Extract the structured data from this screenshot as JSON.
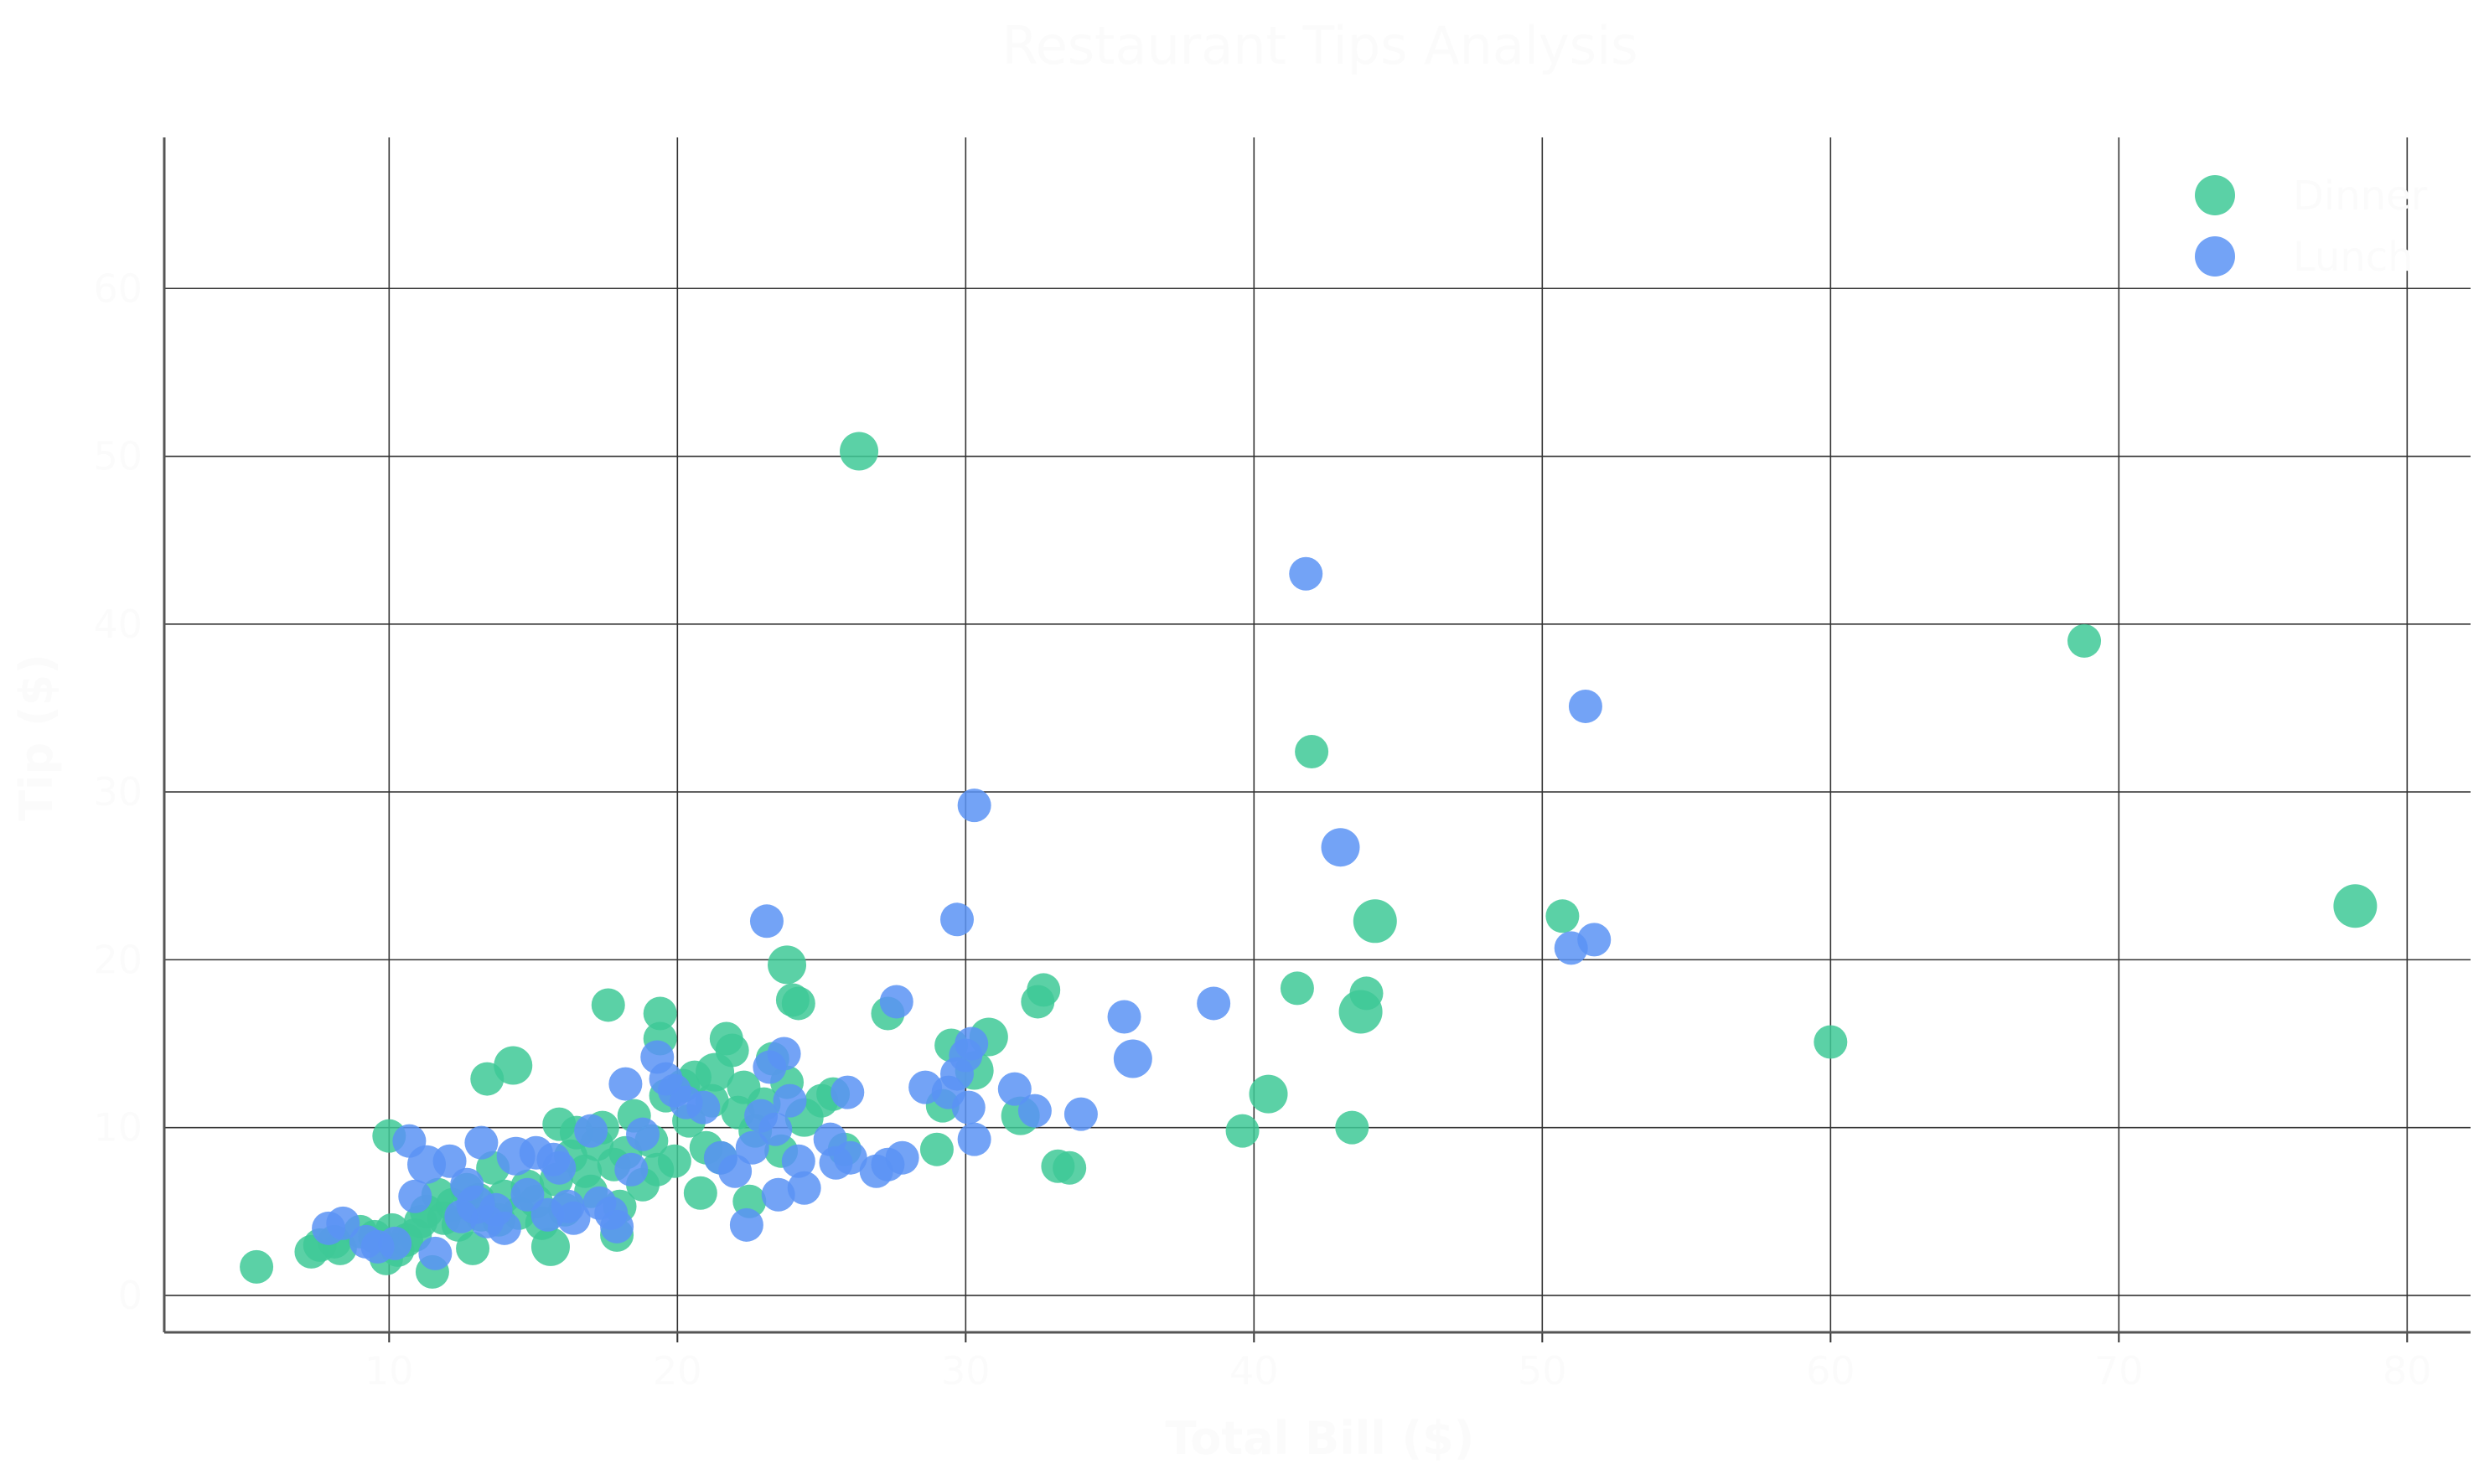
{
  "chart_data": {
    "type": "scatter",
    "title": "Restaurant Tips Analysis",
    "xlabel": "Total Bill ($)",
    "ylabel": "Tip ($)",
    "xlim": [
      2.2,
      82.2
    ],
    "ylim": [
      -2.2,
      69.0
    ],
    "x_ticks": [
      10,
      20,
      30,
      40,
      50,
      60,
      70,
      80
    ],
    "y_ticks": [
      0,
      10,
      20,
      30,
      40,
      50,
      60
    ],
    "grid": true,
    "legend": {
      "placement": "top-right"
    },
    "colors": {
      "Dinner": "#3ec996",
      "Lunch": "#5b93f5",
      "text": "#fbfbfb",
      "grid": "#333333"
    },
    "series": [
      {
        "name": "Dinner",
        "points": [
          [
            5.4,
            1.7,
            1
          ],
          [
            7.3,
            2.6,
            1
          ],
          [
            7.6,
            3.0,
            1
          ],
          [
            8.1,
            3.2,
            1
          ],
          [
            8.3,
            2.8,
            1
          ],
          [
            9.0,
            3.8,
            1
          ],
          [
            9.5,
            3.5,
            1
          ],
          [
            9.9,
            2.2,
            1
          ],
          [
            10.1,
            3.9,
            1
          ],
          [
            10.0,
            9.5,
            1
          ],
          [
            10.3,
            2.7,
            1
          ],
          [
            10.6,
            3.3,
            1
          ],
          [
            10.9,
            3.6,
            1
          ],
          [
            11.1,
            4.4,
            1
          ],
          [
            11.3,
            5.0,
            1
          ],
          [
            11.5,
            1.4,
            1
          ],
          [
            11.7,
            6.0,
            1
          ],
          [
            11.9,
            4.6,
            1
          ],
          [
            12.2,
            5.4,
            1
          ],
          [
            12.4,
            4.2,
            1
          ],
          [
            12.7,
            6.3,
            1
          ],
          [
            12.9,
            2.8,
            1
          ],
          [
            13.1,
            5.7,
            1
          ],
          [
            13.2,
            4.8,
            1
          ],
          [
            13.4,
            12.9,
            1
          ],
          [
            13.6,
            7.6,
            1
          ],
          [
            13.8,
            4.5,
            1
          ],
          [
            14.0,
            5.9,
            1
          ],
          [
            14.3,
            13.7,
            1.15
          ],
          [
            14.5,
            4.9,
            1
          ],
          [
            14.8,
            6.5,
            1
          ],
          [
            15.1,
            5.6,
            1
          ],
          [
            15.3,
            4.3,
            1
          ],
          [
            15.6,
            2.9,
            1.15
          ],
          [
            15.8,
            6.9,
            1
          ],
          [
            15.9,
            10.2,
            1
          ],
          [
            16.1,
            5.1,
            1
          ],
          [
            16.3,
            8.3,
            1
          ],
          [
            16.5,
            9.7,
            1
          ],
          [
            16.8,
            7.4,
            1
          ],
          [
            17.0,
            6.2,
            1
          ],
          [
            17.2,
            9.0,
            1
          ],
          [
            17.4,
            10.0,
            1
          ],
          [
            17.6,
            17.3,
            1
          ],
          [
            17.8,
            7.8,
            1
          ],
          [
            17.9,
            3.6,
            1
          ],
          [
            18.0,
            5.3,
            1
          ],
          [
            18.2,
            8.5,
            1
          ],
          [
            18.5,
            10.7,
            1
          ],
          [
            18.8,
            6.6,
            1
          ],
          [
            19.1,
            9.2,
            1
          ],
          [
            19.3,
            7.5,
            1
          ],
          [
            19.4,
            16.8,
            1
          ],
          [
            19.4,
            15.3,
            1
          ],
          [
            19.6,
            11.9,
            1
          ],
          [
            19.9,
            8.0,
            1
          ],
          [
            20.2,
            12.5,
            1
          ],
          [
            20.4,
            10.4,
            1
          ],
          [
            20.6,
            13.0,
            1
          ],
          [
            20.8,
            6.1,
            1
          ],
          [
            21.0,
            8.8,
            1
          ],
          [
            21.2,
            11.6,
            1
          ],
          [
            21.3,
            13.3,
            1.15
          ],
          [
            21.5,
            8.2,
            1
          ],
          [
            21.7,
            15.3,
            1
          ],
          [
            21.9,
            14.6,
            1
          ],
          [
            22.1,
            10.9,
            1
          ],
          [
            22.3,
            12.4,
            1
          ],
          [
            22.5,
            5.6,
            1
          ],
          [
            22.7,
            9.8,
            1
          ],
          [
            23.0,
            11.4,
            1
          ],
          [
            23.3,
            14.1,
            1
          ],
          [
            23.6,
            8.6,
            1
          ],
          [
            23.8,
            12.7,
            1
          ],
          [
            23.8,
            19.7,
            1.15
          ],
          [
            24.0,
            17.6,
            1
          ],
          [
            24.2,
            17.4,
            1
          ],
          [
            24.4,
            10.6,
            1.15
          ],
          [
            25.0,
            11.6,
            1
          ],
          [
            25.4,
            12.0,
            1
          ],
          [
            25.8,
            8.7,
            1
          ],
          [
            26.3,
            50.3,
            1.15
          ],
          [
            27.3,
            16.8,
            1
          ],
          [
            29.0,
            8.7,
            1
          ],
          [
            29.2,
            11.3,
            1
          ],
          [
            29.5,
            14.9,
            1
          ],
          [
            30.3,
            13.4,
            1.15
          ],
          [
            30.8,
            15.4,
            1.15
          ],
          [
            31.9,
            10.7,
            1.15
          ],
          [
            32.5,
            17.5,
            1
          ],
          [
            32.7,
            18.2,
            1
          ],
          [
            33.2,
            7.7,
            1
          ],
          [
            33.6,
            7.6,
            1
          ],
          [
            39.6,
            9.8,
            1
          ],
          [
            40.5,
            12.0,
            1.15
          ],
          [
            41.5,
            18.3,
            1
          ],
          [
            42.0,
            32.4,
            1
          ],
          [
            43.4,
            10.0,
            1
          ],
          [
            43.7,
            16.9,
            1.3
          ],
          [
            43.9,
            18.0,
            1
          ],
          [
            44.2,
            22.3,
            1.3
          ],
          [
            50.7,
            22.6,
            1
          ],
          [
            60.0,
            15.1,
            1
          ],
          [
            68.8,
            39.0,
            1
          ],
          [
            78.2,
            23.2,
            1.3
          ]
        ]
      },
      {
        "name": "Lunch",
        "points": [
          [
            7.9,
            4.0,
            1
          ],
          [
            8.4,
            4.3,
            1
          ],
          [
            9.2,
            3.2,
            1
          ],
          [
            9.6,
            2.9,
            1
          ],
          [
            10.2,
            3.1,
            1
          ],
          [
            10.7,
            9.2,
            1
          ],
          [
            10.9,
            5.9,
            1
          ],
          [
            11.3,
            7.8,
            1.15
          ],
          [
            11.6,
            2.5,
            1
          ],
          [
            12.1,
            8.0,
            1
          ],
          [
            12.5,
            4.7,
            1
          ],
          [
            12.7,
            6.6,
            1
          ],
          [
            13.0,
            5.4,
            1.15
          ],
          [
            13.2,
            9.1,
            1
          ],
          [
            13.4,
            4.4,
            1
          ],
          [
            13.7,
            5.1,
            1
          ],
          [
            14.0,
            4.0,
            1
          ],
          [
            14.4,
            8.3,
            1.15
          ],
          [
            14.8,
            6.0,
            1
          ],
          [
            15.1,
            8.5,
            1
          ],
          [
            15.5,
            4.8,
            1
          ],
          [
            15.7,
            8.1,
            1
          ],
          [
            15.9,
            7.6,
            1
          ],
          [
            16.2,
            5.3,
            1
          ],
          [
            16.4,
            4.6,
            1
          ],
          [
            17.0,
            9.8,
            1
          ],
          [
            17.3,
            5.5,
            1
          ],
          [
            17.7,
            4.9,
            1
          ],
          [
            17.9,
            4.1,
            1
          ],
          [
            18.2,
            12.6,
            1
          ],
          [
            18.4,
            7.5,
            1
          ],
          [
            18.8,
            9.6,
            1
          ],
          [
            19.3,
            14.2,
            1
          ],
          [
            19.6,
            12.9,
            1
          ],
          [
            19.9,
            12.2,
            1
          ],
          [
            20.3,
            11.5,
            1
          ],
          [
            20.9,
            11.2,
            1
          ],
          [
            21.5,
            8.2,
            1
          ],
          [
            22.0,
            7.4,
            1
          ],
          [
            22.4,
            4.2,
            1
          ],
          [
            22.6,
            8.8,
            1
          ],
          [
            22.9,
            10.7,
            1
          ],
          [
            23.1,
            22.3,
            1
          ],
          [
            23.2,
            13.6,
            1
          ],
          [
            23.4,
            9.9,
            1
          ],
          [
            23.5,
            6.0,
            1
          ],
          [
            23.7,
            14.4,
            1
          ],
          [
            23.9,
            11.6,
            1
          ],
          [
            24.2,
            8.0,
            1
          ],
          [
            24.4,
            6.4,
            1
          ],
          [
            25.3,
            9.3,
            1
          ],
          [
            25.5,
            7.9,
            1
          ],
          [
            25.9,
            12.1,
            1
          ],
          [
            26.0,
            8.2,
            1
          ],
          [
            26.9,
            7.4,
            1
          ],
          [
            27.3,
            7.8,
            1
          ],
          [
            27.6,
            17.5,
            1
          ],
          [
            27.8,
            8.2,
            1
          ],
          [
            28.6,
            12.4,
            1
          ],
          [
            29.4,
            12.1,
            1
          ],
          [
            29.7,
            13.2,
            1
          ],
          [
            29.7,
            22.4,
            1
          ],
          [
            30.0,
            14.3,
            1
          ],
          [
            30.1,
            11.2,
            1
          ],
          [
            30.2,
            15.0,
            1
          ],
          [
            30.3,
            29.2,
            1
          ],
          [
            30.3,
            9.3,
            1
          ],
          [
            31.7,
            12.3,
            1
          ],
          [
            32.4,
            11.0,
            1
          ],
          [
            34.0,
            10.8,
            1
          ],
          [
            35.5,
            16.6,
            1
          ],
          [
            35.8,
            14.1,
            1.15
          ],
          [
            38.6,
            17.4,
            1
          ],
          [
            41.8,
            43.0,
            1
          ],
          [
            43.0,
            26.7,
            1.15
          ],
          [
            51.0,
            20.7,
            1
          ],
          [
            51.5,
            35.1,
            1
          ],
          [
            51.8,
            21.2,
            1
          ]
        ]
      }
    ]
  }
}
